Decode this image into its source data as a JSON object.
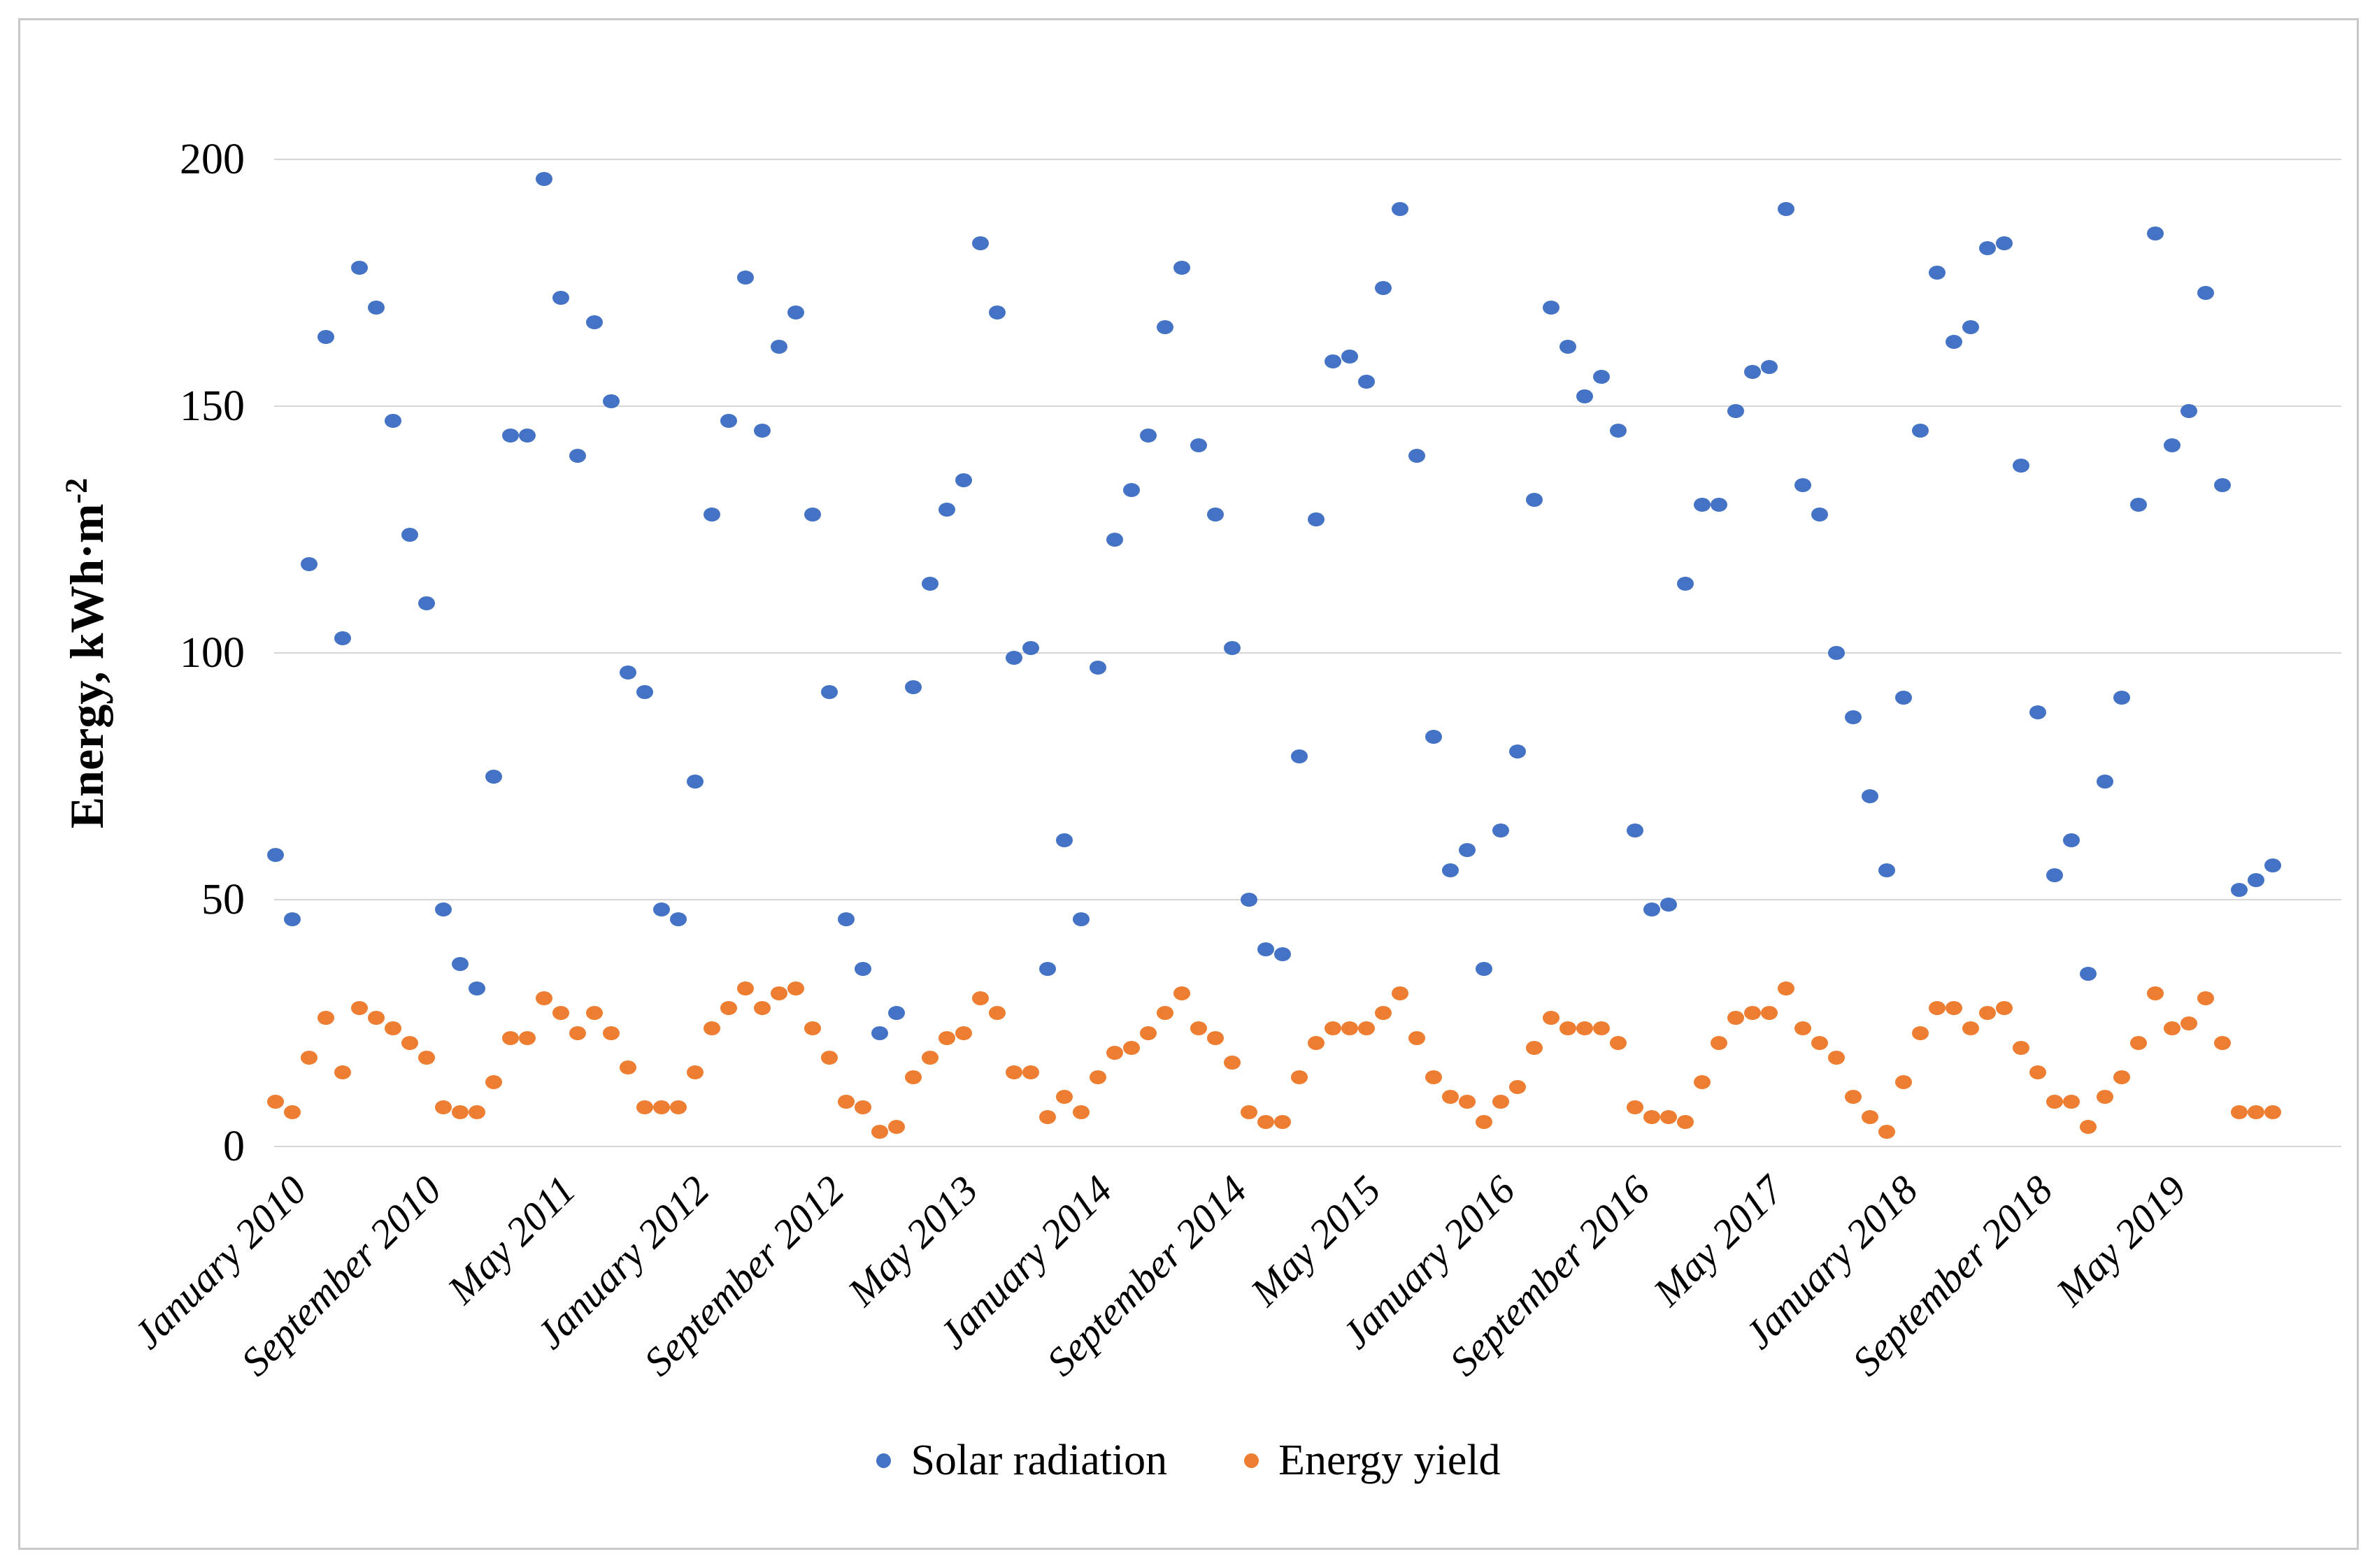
{
  "legend": {
    "items": [
      {
        "label": "Solar radiation",
        "color": "#4472C4"
      },
      {
        "label": "Energy yield",
        "color": "#ED7D31"
      }
    ]
  },
  "y_axis": {
    "title_base": "Energy, kWh·m",
    "title_sup": "-2",
    "ticks": [
      0,
      50,
      100,
      150,
      200
    ]
  },
  "chart_data": {
    "type": "scatter",
    "title": "",
    "xlabel": "",
    "ylabel": "Energy, kWh·m⁻²",
    "ylim": [
      0,
      200
    ],
    "grid": "horizontal",
    "legend_position": "bottom",
    "x_month_count": 120,
    "x_range": "January 2010 - December 2019",
    "x_tick_month_indices": [
      0,
      8,
      16,
      24,
      32,
      40,
      48,
      56,
      64,
      72,
      80,
      88,
      96,
      104,
      112
    ],
    "x_tick_labels": [
      "January 2010",
      "September 2010",
      "May 2011",
      "January 2012",
      "September 2012",
      "May 2013",
      "January 2014",
      "September 2014",
      "May 2015",
      "January 2016",
      "September 2016",
      "May 2017",
      "January 2018",
      "September 2018",
      "May 2019"
    ],
    "series": [
      {
        "name": "Solar radiation",
        "color": "#4472C4",
        "values": [
          59,
          46,
          118,
          164,
          103,
          178,
          170,
          147,
          124,
          110,
          48,
          37,
          32,
          75,
          144,
          144,
          196,
          172,
          140,
          167,
          151,
          96,
          92,
          48,
          46,
          74,
          128,
          147,
          176,
          145,
          162,
          169,
          128,
          92,
          46,
          36,
          23,
          27,
          93,
          114,
          129,
          135,
          183,
          169,
          99,
          101,
          36,
          62,
          46,
          97,
          123,
          133,
          144,
          166,
          178,
          142,
          128,
          101,
          50,
          40,
          39,
          79,
          127,
          159,
          160,
          155,
          174,
          190,
          140,
          83,
          56,
          60,
          36,
          64,
          80,
          131,
          170,
          162,
          152,
          156,
          145,
          64,
          48,
          49,
          114,
          130,
          130,
          149,
          157,
          158,
          190,
          134,
          128,
          100,
          87,
          71,
          56,
          91,
          145,
          177,
          163,
          166,
          182,
          183,
          138,
          88,
          55,
          62,
          35,
          74,
          91,
          130,
          185,
          142,
          149,
          173,
          134,
          52,
          54,
          57
        ]
      },
      {
        "name": "Energy yield",
        "color": "#ED7D31",
        "values": [
          9,
          7,
          18,
          26,
          15,
          28,
          26,
          24,
          21,
          18,
          8,
          7,
          7,
          13,
          22,
          22,
          30,
          27,
          23,
          27,
          23,
          16,
          8,
          8,
          8,
          15,
          24,
          28,
          32,
          28,
          31,
          32,
          24,
          18,
          9,
          8,
          3,
          4,
          14,
          18,
          22,
          23,
          30,
          27,
          15,
          15,
          6,
          10,
          7,
          14,
          19,
          20,
          23,
          27,
          31,
          24,
          22,
          17,
          7,
          5,
          5,
          14,
          21,
          24,
          24,
          24,
          27,
          31,
          22,
          14,
          10,
          9,
          5,
          9,
          12,
          20,
          26,
          24,
          24,
          24,
          21,
          8,
          6,
          6,
          5,
          13,
          21,
          26,
          27,
          27,
          32,
          24,
          21,
          18,
          10,
          6,
          3,
          13,
          23,
          28,
          28,
          24,
          27,
          28,
          20,
          15,
          9,
          9,
          4,
          10,
          14,
          21,
          31,
          24,
          25,
          30,
          21,
          7,
          7,
          7
        ]
      }
    ]
  }
}
